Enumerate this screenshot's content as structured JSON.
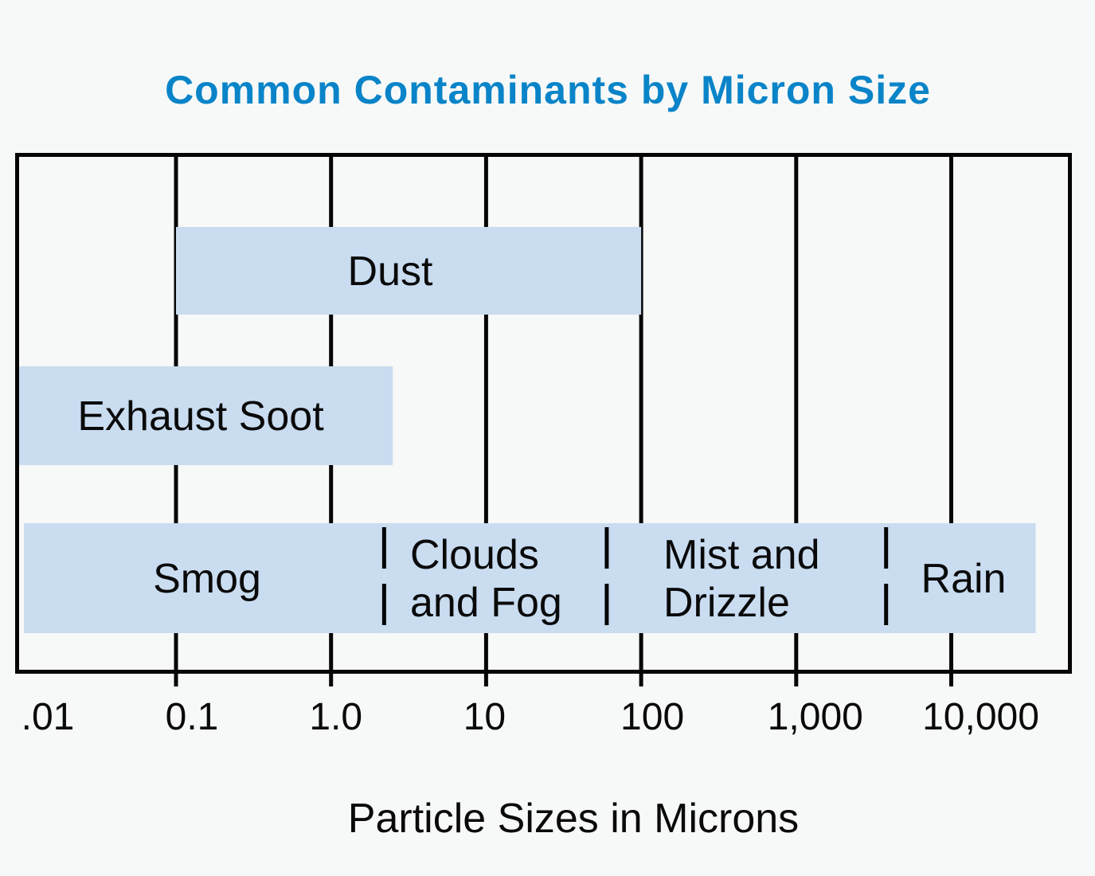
{
  "chart_data": {
    "type": "bar",
    "orientation": "horizontal-range",
    "title": "Common Contaminants by Micron Size",
    "xlabel": "Particle Sizes in Microns",
    "ylabel": "",
    "x_scale": "log",
    "xlim": [
      0.01,
      40000
    ],
    "x_ticks": [
      0.01,
      0.1,
      1,
      10,
      100,
      1000,
      10000
    ],
    "x_tick_labels": [
      ".01",
      "0.1",
      "1.0",
      "10",
      "100",
      "1,000",
      "10,000"
    ],
    "grid": true,
    "bars": [
      {
        "label": [
          "Dust"
        ],
        "row": 0,
        "start": 0.1,
        "end": 100
      },
      {
        "label": [
          "Exhaust Soot"
        ],
        "row": 1,
        "start": 0.01,
        "end": 2.5
      },
      {
        "label": [
          "Smog"
        ],
        "row": 2,
        "start": 0.01,
        "end": 2.2
      },
      {
        "label": [
          "Clouds",
          "and Fog"
        ],
        "row": 2,
        "start": 2.2,
        "end": 60
      },
      {
        "label": [
          "Mist and",
          "Drizzle"
        ],
        "row": 2,
        "start": 60,
        "end": 3800
      },
      {
        "label": [
          "Rain"
        ],
        "row": 2,
        "start": 3800,
        "end": 35000
      }
    ],
    "colors": {
      "title": "#0a84c8",
      "bar": "#c9dcf0",
      "background": "#f7f9f8",
      "lines": "#050505"
    }
  }
}
